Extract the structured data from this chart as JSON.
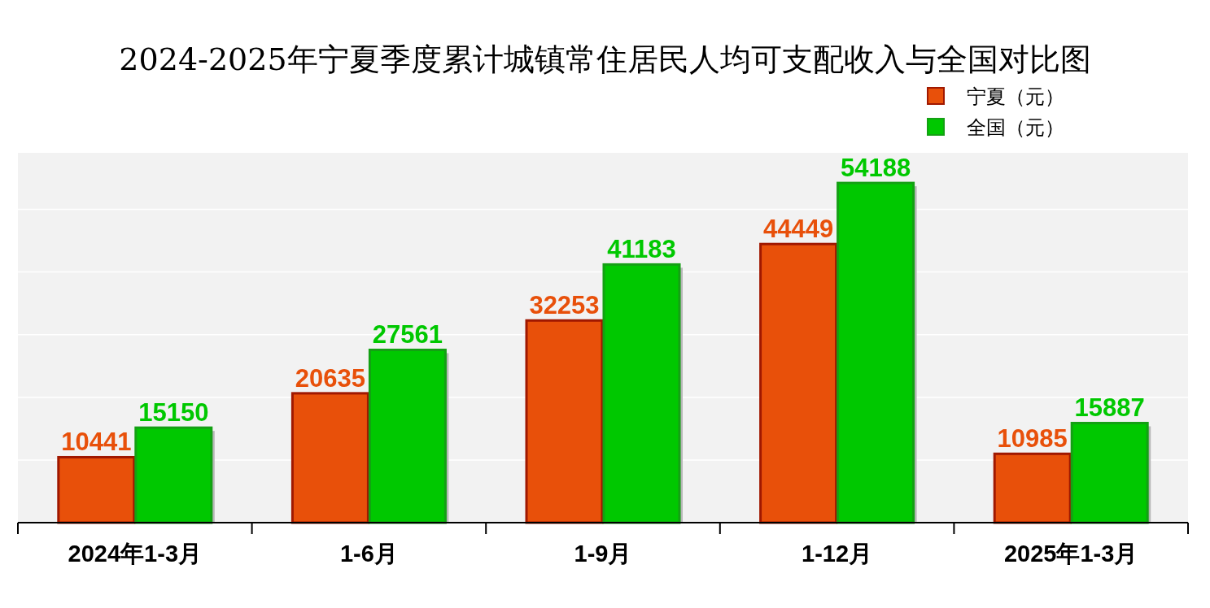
{
  "chart_data": {
    "type": "bar",
    "title": "2024-2025年宁夏季度累计城镇常住居民人均可支配收入与全国对比图",
    "categories": [
      "2024年1-3月",
      "1-6月",
      "1-9月",
      "1-12月",
      "2025年1-3月"
    ],
    "series": [
      {
        "name": "宁夏（元）",
        "color": "#e8500a",
        "values": [
          10441,
          20635,
          32253,
          44449,
          10985
        ]
      },
      {
        "name": "全国（元）",
        "color": "#00c800",
        "values": [
          15150,
          27561,
          41183,
          54188,
          15887
        ]
      }
    ],
    "ylim": [
      0,
      59000
    ],
    "yticks": [
      {
        "value": 0,
        "label": null
      },
      {
        "value": 10000,
        "label": null
      },
      {
        "value": 20000,
        "label": null
      },
      {
        "value": 30000,
        "label": null
      },
      {
        "value": 40000,
        "label": null
      },
      {
        "value": 50000,
        "label": null
      }
    ],
    "grid": "y",
    "legend": "top right",
    "data_labels": true
  }
}
